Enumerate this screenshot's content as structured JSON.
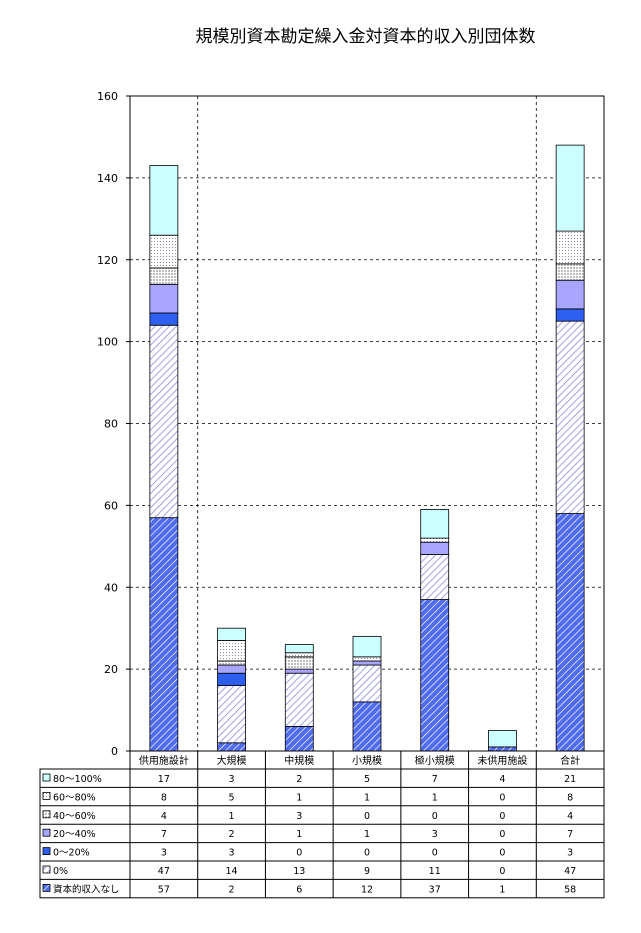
{
  "chart_data": {
    "type": "bar",
    "stacked": true,
    "title": "規模別資本勘定繰入金対資本的収入別団体数",
    "categories": [
      "供用施設計",
      "大規模",
      "中規模",
      "小規模",
      "極小規模",
      "未供用施設",
      "合計"
    ],
    "ylim": [
      0,
      160
    ],
    "yticks": [
      0,
      20,
      40,
      60,
      80,
      100,
      120,
      140,
      160
    ],
    "grid": true,
    "legend": "table-below",
    "series": [
      {
        "name": "資本的収入なし",
        "values": [
          57,
          2,
          6,
          12,
          37,
          1,
          58
        ],
        "color": "#4f6bf0",
        "pattern": "hatch-dense"
      },
      {
        "name": "0%",
        "values": [
          47,
          14,
          13,
          9,
          11,
          0,
          47
        ],
        "color": "#9c98e0",
        "pattern": "hatch-light"
      },
      {
        "name": "0～20%",
        "values": [
          3,
          3,
          0,
          0,
          0,
          0,
          3
        ],
        "color": "#2f5ff0",
        "pattern": "solid"
      },
      {
        "name": "20～40%",
        "values": [
          7,
          2,
          1,
          1,
          3,
          0,
          7
        ],
        "color": "#a8a6ff",
        "pattern": "solid"
      },
      {
        "name": "40～60%",
        "values": [
          4,
          1,
          3,
          0,
          0,
          0,
          4
        ],
        "color": "#d8d8d8",
        "pattern": "grid"
      },
      {
        "name": "60～80%",
        "values": [
          8,
          5,
          1,
          1,
          1,
          0,
          8
        ],
        "color": "#ffffff",
        "pattern": "dots"
      },
      {
        "name": "80～100%",
        "values": [
          17,
          3,
          2,
          5,
          7,
          4,
          21
        ],
        "color": "#ccffff",
        "pattern": "solid"
      }
    ]
  }
}
